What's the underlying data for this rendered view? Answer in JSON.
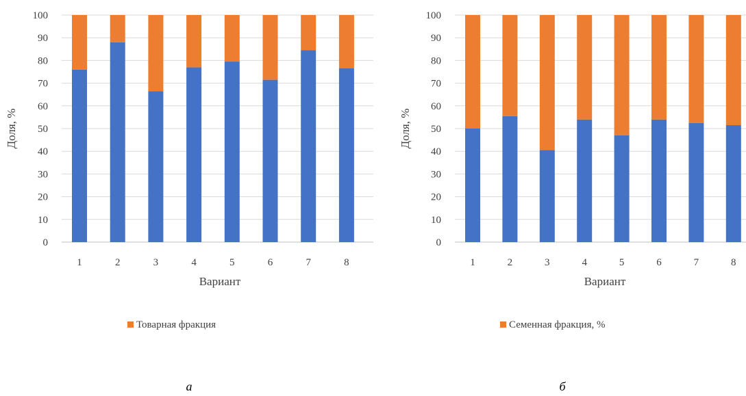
{
  "chart_data": [
    {
      "type": "bar",
      "stacked": true,
      "panel_label": "а",
      "categories": [
        "1",
        "2",
        "3",
        "4",
        "5",
        "6",
        "7",
        "8"
      ],
      "series": [
        {
          "color": "#4472c4",
          "values": [
            76,
            88,
            66.5,
            77,
            79.5,
            71.5,
            84.5,
            76.5
          ]
        },
        {
          "name": "Товарная фракция",
          "color": "#ed7d31",
          "values": [
            24,
            12,
            33.5,
            23,
            20.5,
            28.5,
            15.5,
            23.5
          ]
        }
      ],
      "xlabel": "Вариант",
      "ylabel": "Доля, %",
      "ylim": [
        0,
        100
      ],
      "yticks": [
        "0",
        "10",
        "20",
        "30",
        "40",
        "50",
        "60",
        "70",
        "80",
        "90",
        "100"
      ],
      "grid": true,
      "legend": "bottom"
    },
    {
      "type": "bar",
      "stacked": true,
      "panel_label": "б",
      "categories": [
        "1",
        "2",
        "3",
        "4",
        "5",
        "6",
        "7",
        "8"
      ],
      "series": [
        {
          "color": "#4472c4",
          "values": [
            50,
            55.5,
            40.5,
            54,
            47,
            54,
            52.5,
            51.5
          ]
        },
        {
          "name": "Семенная  фракция, %",
          "color": "#ed7d31",
          "values": [
            50,
            44.5,
            59.5,
            46,
            53,
            46,
            47.5,
            48.5
          ]
        }
      ],
      "xlabel": "Вариант",
      "ylabel": "Доля, %",
      "ylim": [
        0,
        100
      ],
      "yticks": [
        "0",
        "10",
        "20",
        "30",
        "40",
        "50",
        "60",
        "70",
        "80",
        "90",
        "100"
      ],
      "grid": true,
      "legend": "bottom"
    }
  ],
  "colors": {
    "grid": "#d9d9d9",
    "axis": "#bfbfbf",
    "text": "#404040"
  }
}
